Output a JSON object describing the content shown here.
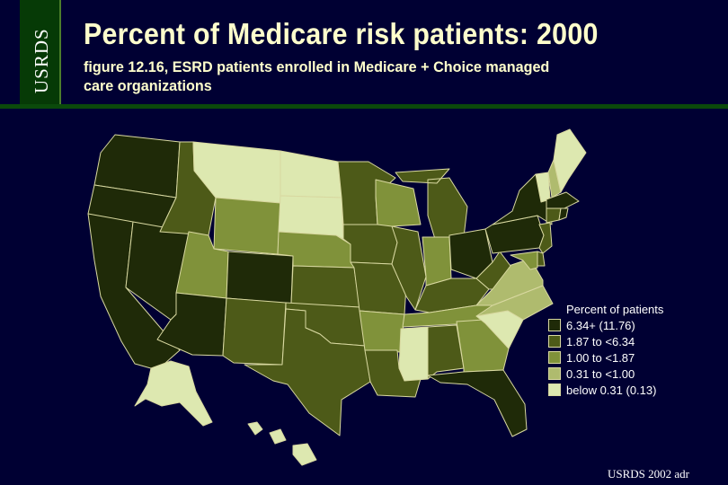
{
  "sidebar": {
    "text": "USRDS"
  },
  "header": {
    "title": "Percent of Medicare risk patients: 2000",
    "subtitle": "figure 12.16, ESRD patients enrolled in Medicare + Choice managed care organizations"
  },
  "colors": {
    "background": "#000033",
    "border": "#d8d8a0",
    "c1": "#1f2a08",
    "c2": "#4d5a18",
    "c3": "#80923a",
    "c4": "#afbb6e",
    "c5": "#dde8b0"
  },
  "legend": {
    "title": "Percent of patients",
    "items": [
      {
        "label": "6.34+ (11.76)",
        "class": "c1"
      },
      {
        "label": "1.87 to <6.34",
        "class": "c2"
      },
      {
        "label": "1.00 to <1.87",
        "class": "c3"
      },
      {
        "label": "0.31 to <1.00",
        "class": "c4"
      },
      {
        "label": "below 0.31 (0.13)",
        "class": "c5"
      }
    ]
  },
  "states": {
    "WA": "c1",
    "OR": "c1",
    "CA": "c1",
    "NV": "c1",
    "ID": "c2",
    "MT": "c5",
    "WY": "c3",
    "UT": "c3",
    "AZ": "c1",
    "CO": "c1",
    "NM": "c2",
    "ND": "c5",
    "SD": "c5",
    "NE": "c3",
    "KS": "c2",
    "OK": "c2",
    "TX": "c2",
    "MN": "c2",
    "IA": "c2",
    "MO": "c2",
    "AR": "c3",
    "LA": "c2",
    "WI": "c3",
    "IL": "c2",
    "MI": "c2",
    "IN": "c3",
    "OH": "c1",
    "KY": "c2",
    "TN": "c3",
    "MS": "c5",
    "AL": "c2",
    "GA": "c3",
    "FL": "c1",
    "SC": "c5",
    "NC": "c4",
    "VA": "c4",
    "WV": "c2",
    "PA": "c1",
    "NY": "c1",
    "ME": "c5",
    "VT": "c5",
    "NH": "c4",
    "MA": "c1",
    "CT": "c2",
    "RI": "c1",
    "NJ": "c2",
    "DE": "c2",
    "MD": "c3",
    "AK": "c5",
    "HI": "c5"
  },
  "footer": {
    "text": "USRDS 2002 adr"
  }
}
